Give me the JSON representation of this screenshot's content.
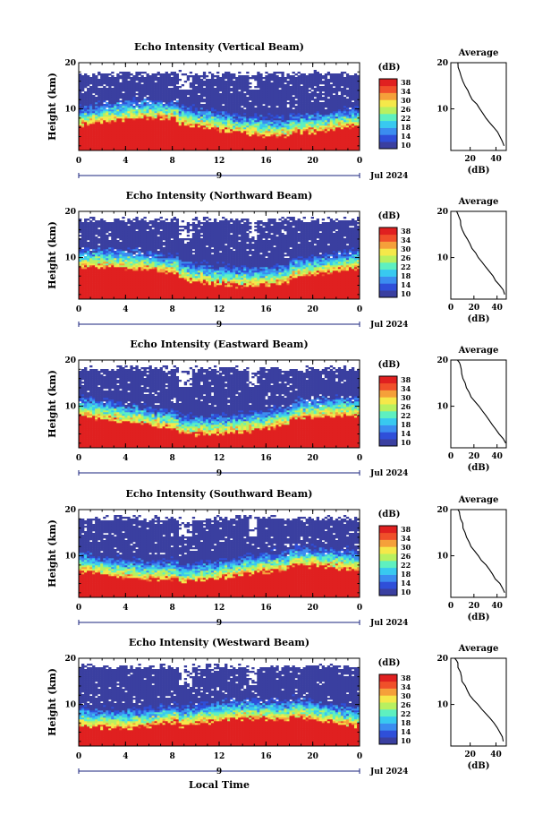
{
  "figure": {
    "xlabel": "Local Time",
    "date_label": "Jul 2024",
    "day_label": "9",
    "colorbar": {
      "unit": "(dB)",
      "ticks": [
        "38",
        "34",
        "30",
        "26",
        "22",
        "18",
        "14",
        "10"
      ],
      "colors": [
        "#3a3fa0",
        "#2f4fd9",
        "#3b8df0",
        "#38c9f0",
        "#5ef0c0",
        "#b8f060",
        "#f5e84a",
        "#f5a03a",
        "#f0502a",
        "#e02020"
      ]
    },
    "height_label": "Height (km)",
    "side_unit": "(dB)",
    "side_title": "Average"
  },
  "chart_data": [
    {
      "type": "heatmap",
      "title": "Echo Intensity (Vertical Beam)",
      "ylabel": "Height (km)",
      "xlim": [
        0,
        24
      ],
      "ylim": [
        1,
        20
      ],
      "xticks": [
        "0",
        "4",
        "8",
        "12",
        "16",
        "20",
        "0"
      ],
      "yticks": [
        "10",
        "20"
      ],
      "profile": {
        "type": "line",
        "title": "Average",
        "xlabel": "(dB)",
        "xticks": [
          "20",
          "40"
        ],
        "yticks": [
          "10",
          "20"
        ],
        "xlim": [
          5,
          48
        ],
        "x": [
          46,
          45,
          43,
          41,
          38,
          35,
          32,
          30,
          28,
          25,
          22,
          20,
          18,
          16,
          14,
          13,
          12,
          11,
          10,
          10,
          9
        ],
        "y": [
          2,
          3,
          4,
          5,
          6,
          7,
          8,
          9,
          10,
          11,
          12,
          13,
          14,
          15,
          16,
          17,
          18,
          19,
          20,
          20,
          20
        ]
      }
    },
    {
      "type": "heatmap",
      "title": "Echo Intensity (Northward Beam)",
      "ylabel": "Height (km)",
      "xlim": [
        0,
        24
      ],
      "ylim": [
        1,
        20
      ],
      "xticks": [
        "0",
        "4",
        "8",
        "12",
        "16",
        "20",
        "0"
      ],
      "yticks": [
        "10",
        "20"
      ],
      "profile": {
        "type": "line",
        "title": "Average",
        "xlabel": "(dB)",
        "xticks": [
          "0",
          "20",
          "40"
        ],
        "yticks": [
          "10",
          "20"
        ],
        "xlim": [
          0,
          48
        ],
        "x": [
          47,
          45,
          42,
          39,
          36,
          33,
          30,
          27,
          24,
          21,
          18,
          16,
          14,
          12,
          10,
          9,
          8,
          7,
          6,
          5,
          4
        ],
        "y": [
          2,
          3,
          4,
          5,
          6,
          7,
          8,
          9,
          10,
          11,
          12,
          13,
          14,
          15,
          16,
          17,
          18,
          19,
          19.5,
          20,
          20
        ]
      }
    },
    {
      "type": "heatmap",
      "title": "Echo Intensity (Eastward Beam)",
      "ylabel": "Height (km)",
      "xlim": [
        0,
        24
      ],
      "ylim": [
        1,
        20
      ],
      "xticks": [
        "0",
        "4",
        "8",
        "12",
        "16",
        "20",
        "0"
      ],
      "yticks": [
        "10",
        "20"
      ],
      "profile": {
        "type": "line",
        "title": "Average",
        "xlabel": "(dB)",
        "xticks": [
          "0",
          "20",
          "40"
        ],
        "yticks": [
          "10",
          "20"
        ],
        "xlim": [
          0,
          48
        ],
        "x": [
          47,
          45,
          42,
          39,
          36,
          33,
          30,
          27,
          24,
          21,
          18,
          16,
          14,
          12,
          11,
          10,
          9,
          8,
          7,
          6,
          5
        ],
        "y": [
          2,
          3,
          4,
          5,
          6,
          7,
          8,
          9,
          10,
          11,
          12,
          13,
          14,
          15,
          16,
          17,
          18,
          19,
          19.5,
          20,
          20
        ]
      }
    },
    {
      "type": "heatmap",
      "title": "Echo Intensity (Southward Beam)",
      "ylabel": "Height (km)",
      "xlim": [
        0,
        24
      ],
      "ylim": [
        1,
        20
      ],
      "xticks": [
        "0",
        "4",
        "8",
        "12",
        "16",
        "20",
        "0"
      ],
      "yticks": [
        "10",
        "20"
      ],
      "profile": {
        "type": "line",
        "title": "Average",
        "xlabel": "(dB)",
        "xticks": [
          "0",
          "20",
          "40"
        ],
        "yticks": [
          "10",
          "20"
        ],
        "xlim": [
          0,
          48
        ],
        "x": [
          47,
          45,
          42,
          39,
          36,
          33,
          30,
          27,
          24,
          21,
          18,
          16,
          14,
          12,
          11,
          10,
          9,
          8,
          7,
          6,
          5
        ],
        "y": [
          2,
          3,
          4,
          5,
          6,
          7,
          8,
          9,
          10,
          11,
          12,
          13,
          14,
          15,
          16,
          17,
          18,
          19,
          19.5,
          20,
          20
        ]
      }
    },
    {
      "type": "heatmap",
      "title": "Echo Intensity (Westward Beam)",
      "ylabel": "Height (km)",
      "xlim": [
        0,
        24
      ],
      "ylim": [
        1,
        20
      ],
      "xticks": [
        "0",
        "4",
        "8",
        "12",
        "16",
        "20",
        "0"
      ],
      "yticks": [
        "10",
        "20"
      ],
      "profile": {
        "type": "line",
        "title": "Average",
        "xlabel": "(dB)",
        "xticks": [
          "20",
          "40"
        ],
        "yticks": [
          "10",
          "20"
        ],
        "xlim": [
          5,
          48
        ],
        "x": [
          46,
          45,
          43,
          41,
          38,
          35,
          32,
          29,
          26,
          23,
          20,
          18,
          16,
          14,
          13,
          12,
          11,
          10,
          9,
          8,
          8
        ],
        "y": [
          2,
          3,
          4,
          5,
          6,
          7,
          8,
          9,
          10,
          11,
          12,
          13,
          14,
          15,
          16,
          17,
          18,
          19,
          19.5,
          20,
          20
        ]
      }
    }
  ]
}
